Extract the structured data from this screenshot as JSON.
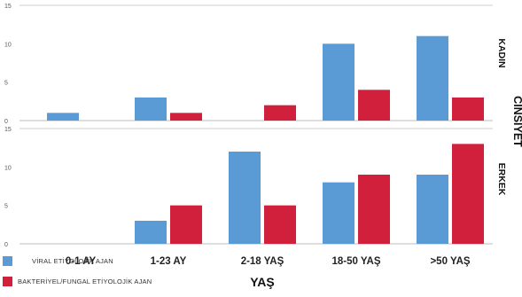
{
  "chart_data": {
    "type": "bar",
    "categories": [
      "0-1 AY",
      "1-23 AY",
      "2-18 YAŞ",
      "18-50 YAŞ",
      ">50 YAŞ"
    ],
    "xlabel": "YAŞ",
    "facet_label": "CİNSİYET",
    "legend_placement": "bottom-left",
    "grid": false,
    "ylim": [
      0,
      15
    ],
    "yticks": [
      0,
      5,
      10,
      15
    ],
    "series_colors": {
      "viral": "#5b9bd5",
      "bakteriyel": "#d1203c"
    },
    "legend": [
      {
        "key": "viral",
        "label": "VİRAL ETİYOLOJİK AJAN"
      },
      {
        "key": "bakteriyel",
        "label": "BAKTERİYEL/FUNGAL ETİYOLOJİK AJAN"
      }
    ],
    "panels": [
      {
        "label": "KADIN",
        "series": [
          {
            "key": "viral",
            "values": [
              1,
              3,
              0,
              10,
              11
            ]
          },
          {
            "key": "bakteriyel",
            "values": [
              0,
              1,
              2,
              4,
              3
            ]
          }
        ]
      },
      {
        "label": "ERKEK",
        "series": [
          {
            "key": "viral",
            "values": [
              0,
              3,
              12,
              8,
              9
            ]
          },
          {
            "key": "bakteriyel",
            "values": [
              0,
              5,
              5,
              9,
              13
            ]
          }
        ]
      }
    ]
  }
}
